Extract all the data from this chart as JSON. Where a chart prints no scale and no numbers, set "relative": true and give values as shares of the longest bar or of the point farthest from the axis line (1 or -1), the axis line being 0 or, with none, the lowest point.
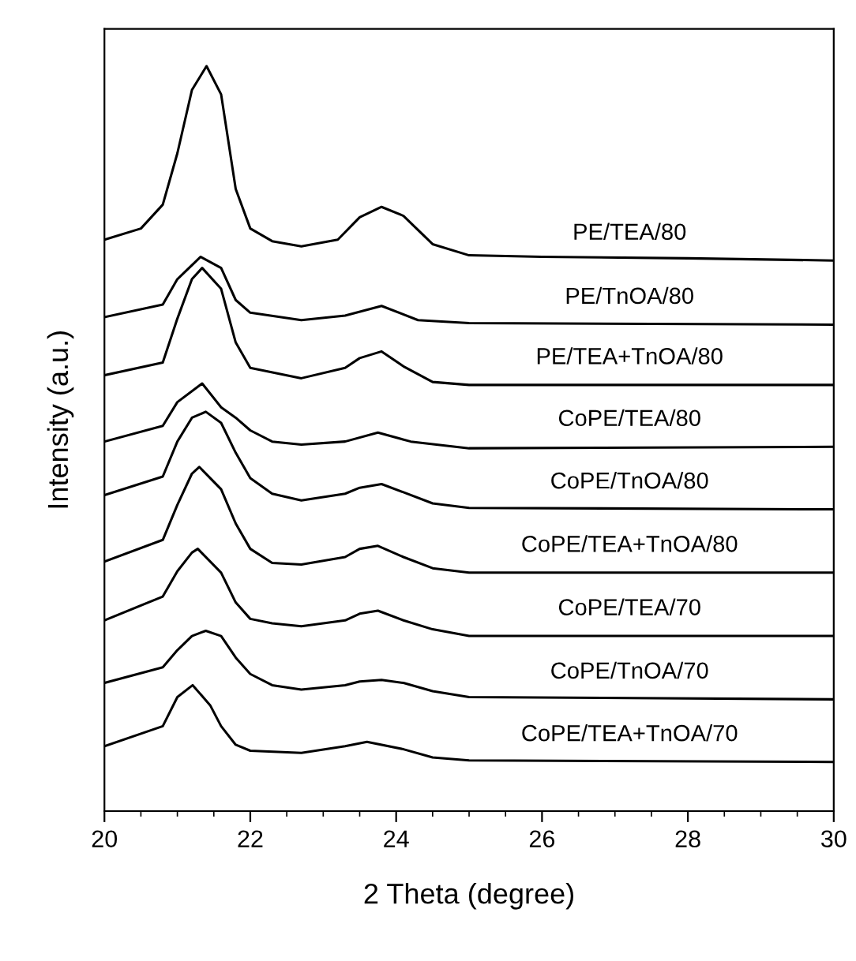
{
  "chart_data": {
    "type": "line",
    "xlabel": "2 Theta (degree)",
    "ylabel": "Intensity (a.u.)",
    "relative": true,
    "xlim": [
      20,
      30
    ],
    "xticks": [
      20,
      22,
      24,
      26,
      28,
      30
    ],
    "grid": false,
    "legend": false,
    "marker": "none",
    "line_style": "solid",
    "series": [
      {
        "name": "PE/TEA/80",
        "color": "#000000",
        "x": [
          20,
          20.5,
          20.8,
          21.0,
          21.2,
          21.4,
          21.6,
          21.8,
          22.0,
          22.3,
          22.7,
          23.2,
          23.5,
          23.8,
          24.1,
          24.5,
          25,
          26,
          28,
          30
        ],
        "values": [
          0.767,
          0.782,
          0.814,
          0.883,
          0.968,
          1.0,
          0.962,
          0.835,
          0.782,
          0.765,
          0.758,
          0.767,
          0.797,
          0.811,
          0.799,
          0.761,
          0.746,
          0.744,
          0.742,
          0.739
        ]
      },
      {
        "name": "PE/TnOA/80",
        "color": "#000000",
        "x": [
          20,
          20.8,
          21.0,
          21.32,
          21.6,
          21.8,
          22.0,
          22.7,
          23.3,
          23.8,
          24.3,
          25,
          30
        ],
        "values": [
          0.663,
          0.68,
          0.714,
          0.744,
          0.729,
          0.686,
          0.669,
          0.659,
          0.665,
          0.678,
          0.659,
          0.655,
          0.653
        ]
      },
      {
        "name": "PE/TEA+TnOA/80",
        "color": "#000000",
        "x": [
          20,
          20.8,
          21.0,
          21.2,
          21.34,
          21.6,
          21.8,
          22.0,
          22.7,
          23.3,
          23.5,
          23.8,
          24.1,
          24.5,
          25,
          30
        ],
        "values": [
          0.585,
          0.602,
          0.661,
          0.714,
          0.729,
          0.701,
          0.629,
          0.595,
          0.581,
          0.595,
          0.608,
          0.617,
          0.597,
          0.576,
          0.572,
          0.572
        ]
      },
      {
        "name": "CoPE/TEA/80",
        "color": "#000000",
        "x": [
          20,
          20.8,
          21.0,
          21.34,
          21.6,
          21.8,
          22.0,
          22.3,
          22.7,
          23.3,
          23.75,
          24.2,
          25,
          30
        ],
        "values": [
          0.496,
          0.517,
          0.549,
          0.574,
          0.542,
          0.528,
          0.511,
          0.496,
          0.492,
          0.496,
          0.508,
          0.496,
          0.487,
          0.489
        ]
      },
      {
        "name": "CoPE/TnOA/80",
        "color": "#000000",
        "x": [
          20,
          20.8,
          21.0,
          21.2,
          21.39,
          21.6,
          21.8,
          22.0,
          22.3,
          22.7,
          23.3,
          23.5,
          23.8,
          24.1,
          24.5,
          25,
          30
        ],
        "values": [
          0.424,
          0.449,
          0.496,
          0.528,
          0.536,
          0.521,
          0.481,
          0.447,
          0.426,
          0.417,
          0.426,
          0.434,
          0.439,
          0.428,
          0.413,
          0.407,
          0.405
        ]
      },
      {
        "name": "CoPE/TEA+TnOA/80",
        "color": "#000000",
        "x": [
          20,
          20.8,
          21.0,
          21.2,
          21.3,
          21.6,
          21.8,
          22.0,
          22.3,
          22.7,
          23.3,
          23.5,
          23.75,
          24.1,
          24.5,
          25,
          30
        ],
        "values": [
          0.335,
          0.364,
          0.411,
          0.453,
          0.462,
          0.432,
          0.386,
          0.352,
          0.333,
          0.331,
          0.341,
          0.352,
          0.356,
          0.341,
          0.326,
          0.32,
          0.32
        ]
      },
      {
        "name": "CoPE/TEA/70",
        "color": "#000000",
        "x": [
          20,
          20.8,
          21.0,
          21.2,
          21.28,
          21.6,
          21.8,
          22.0,
          22.3,
          22.7,
          23.3,
          23.5,
          23.75,
          24.1,
          24.5,
          25,
          30
        ],
        "values": [
          0.256,
          0.288,
          0.322,
          0.347,
          0.352,
          0.32,
          0.28,
          0.258,
          0.252,
          0.248,
          0.256,
          0.265,
          0.269,
          0.256,
          0.244,
          0.235,
          0.235
        ]
      },
      {
        "name": "CoPE/TnOA/70",
        "color": "#000000",
        "x": [
          20,
          20.8,
          21.0,
          21.2,
          21.39,
          21.6,
          21.8,
          22.0,
          22.3,
          22.7,
          23.3,
          23.5,
          23.8,
          24.1,
          24.5,
          25,
          30
        ],
        "values": [
          0.172,
          0.193,
          0.216,
          0.235,
          0.242,
          0.235,
          0.206,
          0.184,
          0.169,
          0.163,
          0.169,
          0.174,
          0.176,
          0.172,
          0.161,
          0.153,
          0.15
        ]
      },
      {
        "name": "CoPE/TEA+TnOA/70",
        "color": "#000000",
        "x": [
          20,
          20.8,
          21.0,
          21.21,
          21.45,
          21.6,
          21.8,
          22.0,
          22.7,
          23.3,
          23.6,
          24.1,
          24.5,
          25,
          30
        ],
        "values": [
          0.087,
          0.114,
          0.153,
          0.169,
          0.142,
          0.114,
          0.089,
          0.081,
          0.078,
          0.087,
          0.093,
          0.083,
          0.072,
          0.068,
          0.066
        ]
      }
    ]
  }
}
